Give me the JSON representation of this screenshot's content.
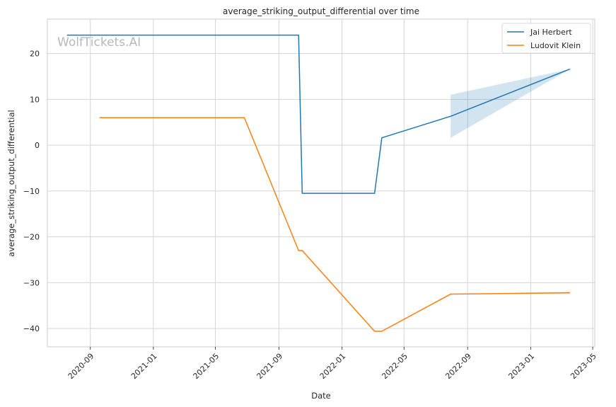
{
  "chart_data": {
    "type": "line",
    "title": "average_striking_output_differential over time",
    "xlabel": "Date",
    "ylabel": "average_striking_output_differential",
    "watermark": "WolfTickets.AI",
    "x_range": [
      "2020-06-10",
      "2023-05-05"
    ],
    "ylim": [
      -44,
      27.5
    ],
    "x_ticks": [
      "2020-09",
      "2021-01",
      "2021-05",
      "2021-09",
      "2022-01",
      "2022-05",
      "2022-09",
      "2023-01",
      "2023-05"
    ],
    "y_ticks": [
      -40,
      -30,
      -20,
      -10,
      0,
      10,
      20
    ],
    "grid": true,
    "legend_position": "top-right",
    "series": [
      {
        "name": "Jai Herbert",
        "color": "#1f77b4",
        "points": [
          {
            "x": "2020-07-18",
            "y": 24.0
          },
          {
            "x": "2021-10-09",
            "y": 24.0
          },
          {
            "x": "2021-10-16",
            "y": -10.5
          },
          {
            "x": "2022-03-05",
            "y": -10.5
          },
          {
            "x": "2022-03-19",
            "y": 1.6
          },
          {
            "x": "2022-07-30",
            "y": 6.3
          },
          {
            "x": "2023-03-18",
            "y": 16.6
          }
        ],
        "band": {
          "color": "#1f77b4",
          "points": [
            {
              "x": "2022-07-30",
              "low": 1.6,
              "high": 11.0
            },
            {
              "x": "2023-03-18",
              "low": 16.6,
              "high": 16.6
            }
          ]
        }
      },
      {
        "name": "Ludovit Klein",
        "color": "#ff7f0e",
        "points": [
          {
            "x": "2020-09-19",
            "y": 6.0
          },
          {
            "x": "2021-06-26",
            "y": 6.0
          },
          {
            "x": "2021-10-09",
            "y": -23.0
          },
          {
            "x": "2021-10-16",
            "y": -23.0
          },
          {
            "x": "2022-03-05",
            "y": -40.6
          },
          {
            "x": "2022-03-19",
            "y": -40.6
          },
          {
            "x": "2022-07-30",
            "y": -32.5
          },
          {
            "x": "2023-03-18",
            "y": -32.2
          }
        ],
        "band": {
          "color": "#ff7f0e",
          "points": [
            {
              "x": "2022-07-30",
              "low": -32.5,
              "high": -32.5
            },
            {
              "x": "2023-03-18",
              "low": -32.45,
              "high": -31.95
            }
          ]
        }
      }
    ]
  }
}
